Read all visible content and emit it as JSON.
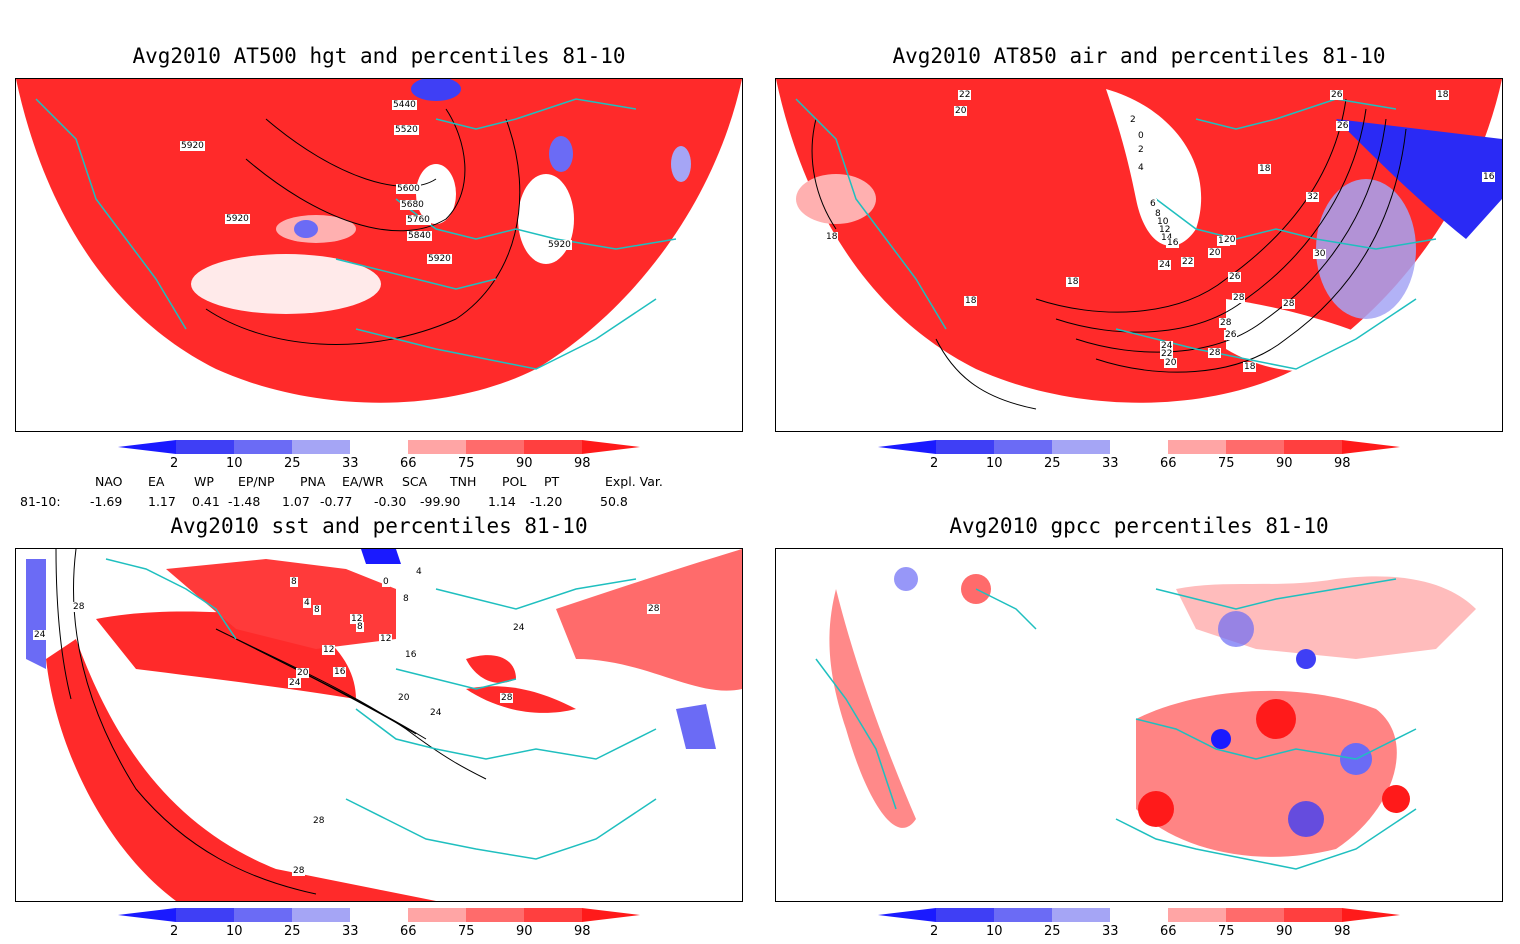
{
  "panels": [
    {
      "title": "Avg2010 AT500 hgt and percentiles 81-10",
      "contour_labels": [
        "5440",
        "5520",
        "5920",
        "5920",
        "5600",
        "5680",
        "5760",
        "5840",
        "5920",
        "5920"
      ]
    },
    {
      "title": "Avg2010 AT850 air and percentiles 81-10",
      "contour_labels": [
        "22",
        "20",
        "18",
        "2",
        "0",
        "2",
        "4",
        "6",
        "8",
        "10",
        "12",
        "14",
        "16",
        "18",
        "20",
        "22",
        "24",
        "26",
        "28",
        "28",
        "26",
        "24",
        "22",
        "20",
        "18",
        "18",
        "18",
        "18",
        "28",
        "30",
        "32",
        "18",
        "26",
        "16",
        "20",
        "28",
        "26"
      ]
    },
    {
      "title": "Avg2010 sst and percentiles 81-10",
      "contour_labels": [
        "24",
        "28",
        "8",
        "12",
        "4",
        "8",
        "8",
        "12",
        "0",
        "4",
        "8",
        "12",
        "16",
        "20",
        "24",
        "16",
        "20",
        "24",
        "24",
        "28",
        "28",
        "28",
        "28"
      ]
    },
    {
      "title": "Avg2010 gpcc percentiles 81-10",
      "contour_labels": []
    }
  ],
  "colorbar": {
    "labels": [
      "2",
      "10",
      "25",
      "33",
      "66",
      "75",
      "90",
      "98"
    ],
    "colors": [
      "#1a1aff",
      "#3f3ff5",
      "#6b6bf5",
      "#a5a5f5",
      "#ffffff",
      "#ffa5a5",
      "#ff6b6b",
      "#ff3f3f",
      "#ff1a1a"
    ]
  },
  "indices": {
    "headers": [
      "NAO",
      "EA",
      "WP",
      "EP/NP",
      "PNA",
      "EA/WR",
      "SCA",
      "TNH",
      "POL",
      "PT",
      "Expl. Var."
    ],
    "row_label": "81-10:",
    "values": [
      "-1.69",
      "1.17",
      "0.41",
      "-1.48",
      "1.07",
      "-0.77",
      "-0.30",
      "-99.90",
      "1.14",
      "-1.20",
      "50.8"
    ]
  },
  "colors": {
    "land_outline": "#1fbfbf",
    "warm": "#ff2020",
    "cold": "#4040ff",
    "contour": "#000000"
  }
}
